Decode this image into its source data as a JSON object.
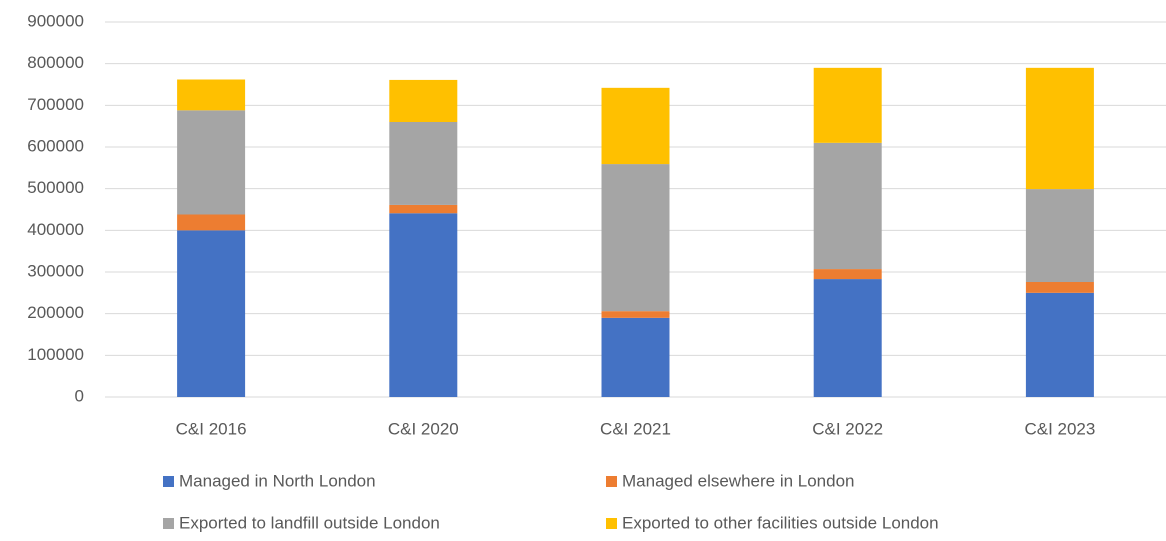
{
  "chart_data": {
    "type": "stacked_bar",
    "categories": [
      "C&I 2016",
      "C&I 2020",
      "C&I 2021",
      "C&I 2022",
      "C&I 2023"
    ],
    "series": [
      {
        "name": "Managed in North London",
        "color": "#4472c4",
        "values": [
          400000,
          441000,
          190000,
          283000,
          250000
        ]
      },
      {
        "name": "Managed elsewhere in London",
        "color": "#ed7d31",
        "values": [
          38000,
          20000,
          16000,
          24000,
          26000
        ]
      },
      {
        "name": "Exported to landfill outside London",
        "color": "#a5a5a5",
        "values": [
          250000,
          199000,
          353000,
          303000,
          223000
        ]
      },
      {
        "name": "Exported to other facilities outside London",
        "color": "#ffc000",
        "values": [
          74000,
          101000,
          183000,
          180000,
          291000
        ]
      }
    ],
    "ylim": [
      0,
      900000
    ],
    "yticks": [
      0,
      100000,
      200000,
      300000,
      400000,
      500000,
      600000,
      700000,
      800000,
      900000
    ],
    "grid": true,
    "legend": "bottom"
  }
}
